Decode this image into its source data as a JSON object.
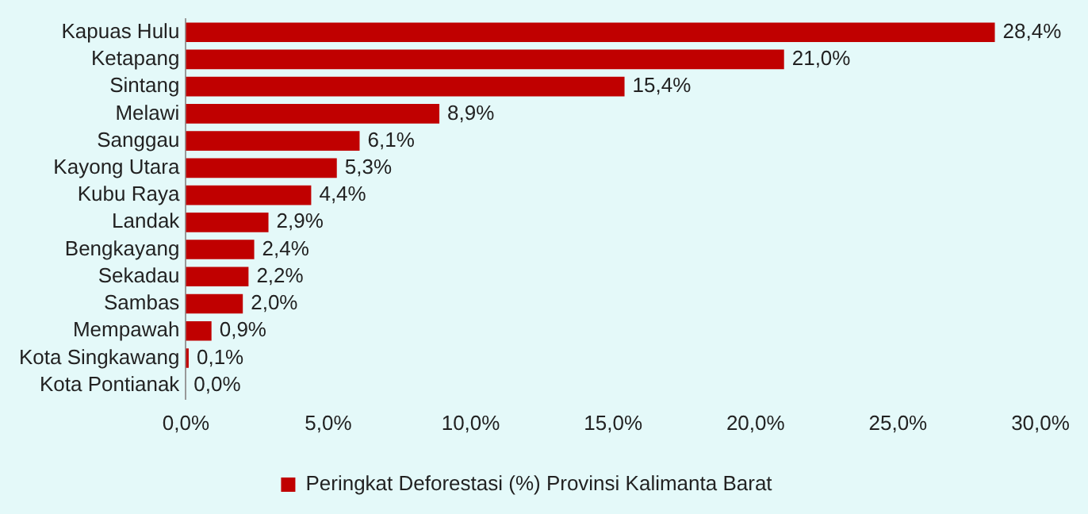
{
  "chart_data": {
    "type": "bar",
    "orientation": "horizontal",
    "categories": [
      "Kapuas Hulu",
      "Ketapang",
      "Sintang",
      "Melawi",
      "Sanggau",
      "Kayong Utara",
      "Kubu Raya",
      "Landak",
      "Bengkayang",
      "Sekadau",
      "Sambas",
      "Mempawah",
      "Kota Singkawang",
      "Kota Pontianak"
    ],
    "series": [
      {
        "name": "Peringkat Deforestasi (%) Provinsi Kalimanta Barat",
        "color": "#c00000",
        "values": [
          28.4,
          21.0,
          15.4,
          8.9,
          6.1,
          5.3,
          4.4,
          2.9,
          2.4,
          2.2,
          2.0,
          0.9,
          0.1,
          0.0
        ],
        "value_labels": [
          "28,4%",
          "21,0%",
          "15,4%",
          "8,9%",
          "6,1%",
          "5,3%",
          "4,4%",
          "2,9%",
          "2,4%",
          "2,2%",
          "2,0%",
          "0,9%",
          "0,1%",
          "0,0%"
        ]
      }
    ],
    "xlim": [
      0,
      30
    ],
    "xticks": [
      {
        "value": 0,
        "label": "0,0%"
      },
      {
        "value": 5,
        "label": "5,0%"
      },
      {
        "value": 10,
        "label": "10,0%"
      },
      {
        "value": 15,
        "label": "15,0%"
      },
      {
        "value": 20,
        "label": "20,0%"
      },
      {
        "value": 25,
        "label": "25,0%"
      },
      {
        "value": 30,
        "label": "30,0%"
      }
    ],
    "grid": false,
    "legend": "bottom"
  }
}
